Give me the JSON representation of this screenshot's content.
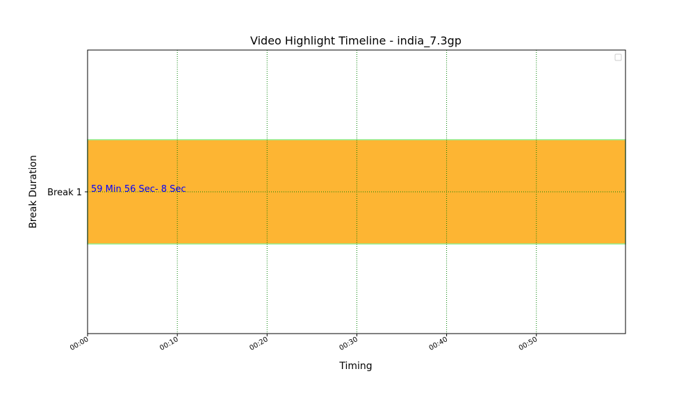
{
  "chart_data": {
    "type": "bar",
    "orientation": "horizontal",
    "title": "Video Highlight Timeline - india_7.3gp",
    "xlabel": "Timing",
    "ylabel": "Break Duration",
    "x_unit": "minutes",
    "xlim": [
      0,
      59.93
    ],
    "x_ticks": [
      0,
      10,
      20,
      30,
      40,
      50
    ],
    "x_tick_labels": [
      "00:00",
      "00:10",
      "00:20",
      "00:30",
      "00:40",
      "00:50"
    ],
    "categories": [
      "Break 1"
    ],
    "bars": [
      {
        "category": "Break 1",
        "start": 0,
        "end": 59.93,
        "label": "59 Min 56 Sec- 8 Sec"
      }
    ],
    "grid": true,
    "legend": "top-right",
    "colors": {
      "bar_fill": "#FDB533",
      "bar_edge": "#90EE90",
      "grid": "#008000",
      "annotation": "#0000FF",
      "axis": "#000000"
    }
  }
}
